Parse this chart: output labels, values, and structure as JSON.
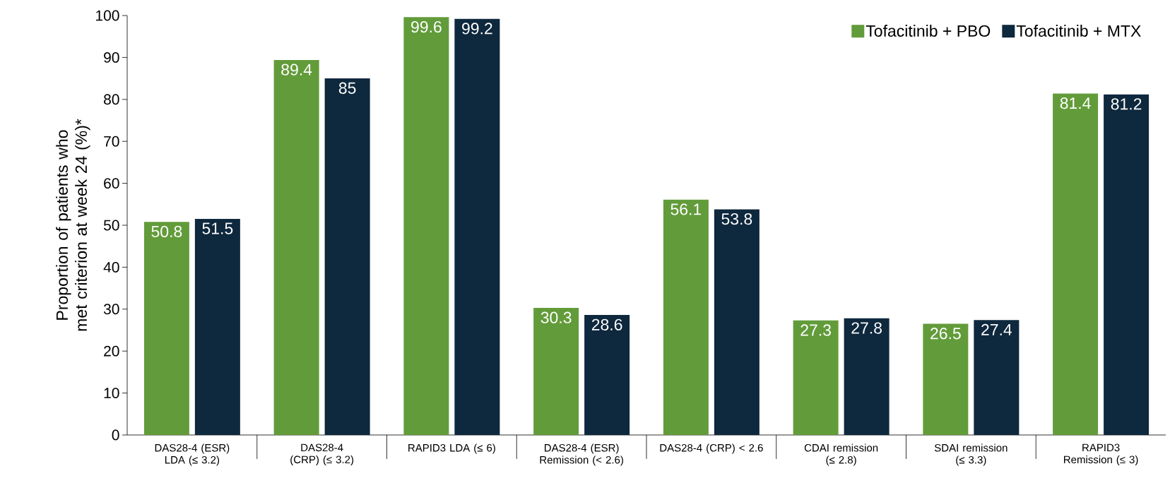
{
  "chart_data": {
    "type": "bar",
    "ylabel": "Proportion of patients who met criterion at week 24 (%)*",
    "categories": [
      "DAS28-4 (ESR) LDA (≤ 3.2)",
      "DAS28-4 (CRP) (≤ 3.2)",
      "RAPID3 LDA (≤ 6)",
      "DAS28-4 (ESR) Remission (< 2.6)",
      "DAS28-4 (CRP) < 2.6",
      "CDAI remission (≤ 2.8)",
      "SDAI remission (≤ 3.3)",
      "RAPID3 Remission (≤ 3)"
    ],
    "series": [
      {
        "name": "Tofacitinib + PBO",
        "color": "#629c3a",
        "values": [
          50.8,
          89.4,
          99.6,
          30.3,
          56.1,
          27.3,
          26.5,
          81.4
        ]
      },
      {
        "name": "Tofacitinib + MTX",
        "color": "#0e283d",
        "values": [
          51.5,
          85,
          99.2,
          28.6,
          53.8,
          27.8,
          27.4,
          81.2
        ]
      }
    ],
    "ylim": [
      0,
      100
    ],
    "yticks": [
      0,
      10,
      20,
      30,
      40,
      50,
      60,
      70,
      80,
      90,
      100
    ],
    "data_labels": true,
    "legend": "top right",
    "grid": false
  }
}
